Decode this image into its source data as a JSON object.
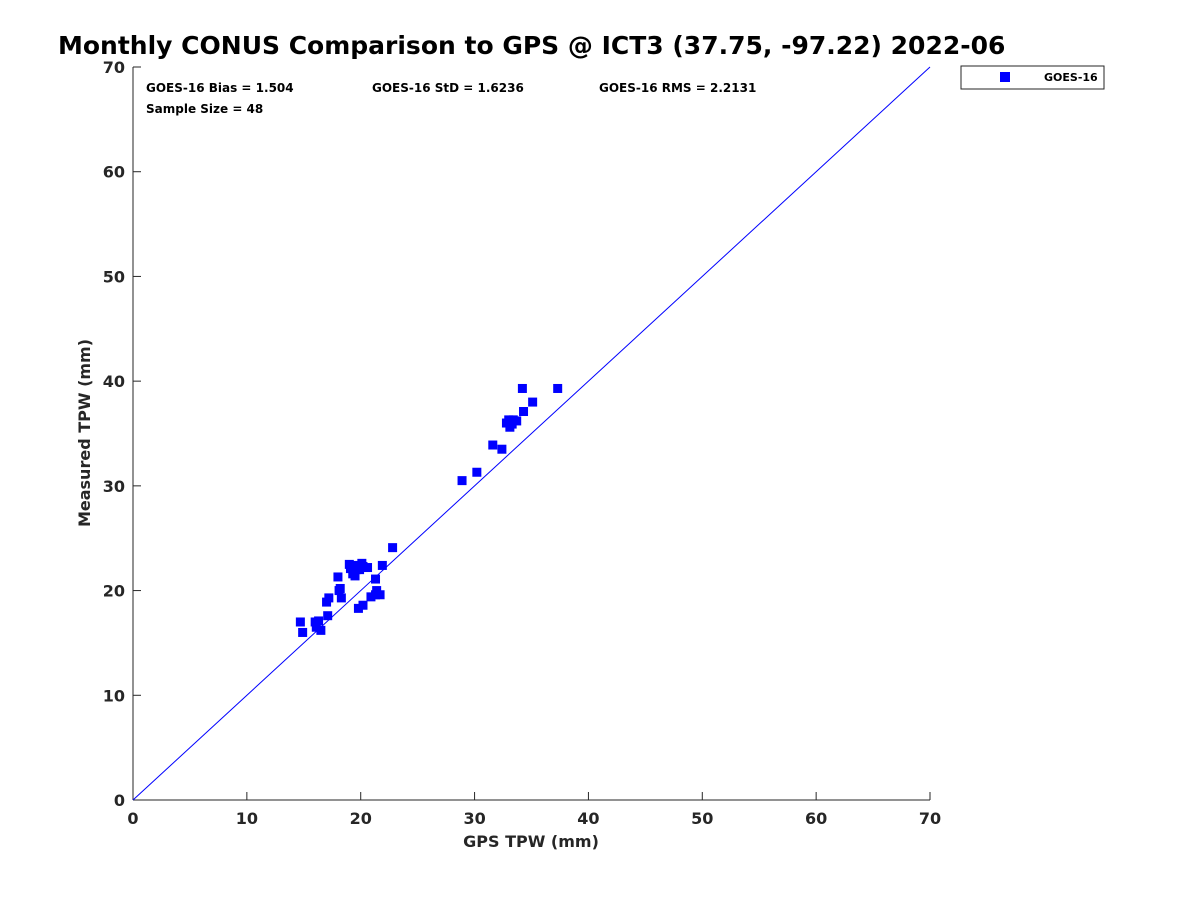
{
  "chart_data": {
    "type": "scatter",
    "title": "Monthly CONUS Comparison to GPS @ ICT3 (37.75, -97.22) 2022-06",
    "xlabel": "GPS TPW (mm)",
    "ylabel": "Measured TPW (mm)",
    "xlim": [
      0,
      70
    ],
    "ylim": [
      0,
      70
    ],
    "xticks": [
      0,
      10,
      20,
      30,
      40,
      50,
      60,
      70
    ],
    "yticks": [
      0,
      10,
      20,
      30,
      40,
      50,
      60,
      70
    ],
    "grid": false,
    "legend_position": "outside-top-right",
    "reference_line": {
      "x": [
        0,
        70
      ],
      "y": [
        0,
        70
      ],
      "color": "#0000ff"
    },
    "stats": {
      "bias": "GOES-16 Bias = 1.504",
      "std": "GOES-16 StD = 1.6236",
      "rms": "GOES-16 RMS = 2.2131",
      "sample_size": "Sample Size = 48"
    },
    "series": [
      {
        "name": "GOES-16",
        "color": "#0000ff",
        "marker": "square",
        "x": [
          14.7,
          14.9,
          16.0,
          16.1,
          16.3,
          16.5,
          17.0,
          17.2,
          17.1,
          18.0,
          18.1,
          18.3,
          18.2,
          19.0,
          19.1,
          19.3,
          19.5,
          19.6,
          19.7,
          19.9,
          20.0,
          20.1,
          20.2,
          20.6,
          19.8,
          20.2,
          20.9,
          21.3,
          21.4,
          21.3,
          21.7,
          21.9,
          22.8,
          28.9,
          30.2,
          31.6,
          32.4,
          32.8,
          33.0,
          33.1,
          33.3,
          33.4,
          33.7,
          34.2,
          34.3,
          35.1,
          37.3,
          19.4
        ],
        "y": [
          17.0,
          16.0,
          17.0,
          16.5,
          17.1,
          16.2,
          18.9,
          19.3,
          17.6,
          21.3,
          20.0,
          19.3,
          20.2,
          22.5,
          22.1,
          21.6,
          21.4,
          22.0,
          22.4,
          22.0,
          22.3,
          22.6,
          22.3,
          22.2,
          18.3,
          18.6,
          19.4,
          21.1,
          20.0,
          19.6,
          19.6,
          22.4,
          24.1,
          30.5,
          31.3,
          33.9,
          33.5,
          36.0,
          36.3,
          35.6,
          35.9,
          36.3,
          36.2,
          39.3,
          37.1,
          38.0,
          39.3,
          22.3
        ]
      }
    ]
  }
}
